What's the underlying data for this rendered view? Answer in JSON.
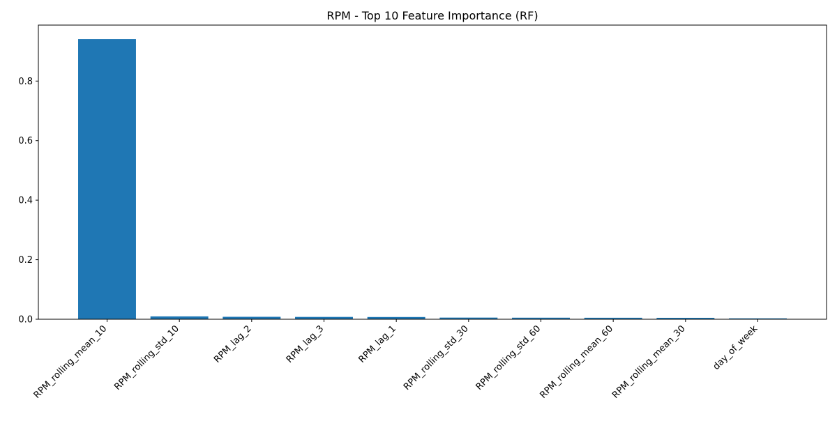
{
  "chart_data": {
    "type": "bar",
    "title": "RPM - Top 10 Feature Importance (RF)",
    "xlabel": "",
    "ylabel": "",
    "categories": [
      "RPM_rolling_mean_10",
      "RPM_rolling_std_10",
      "RPM_lag_2",
      "RPM_lag_3",
      "RPM_lag_1",
      "RPM_rolling_std_30",
      "RPM_rolling_std_60",
      "RPM_rolling_mean_60",
      "RPM_rolling_mean_30",
      "day_of_week"
    ],
    "values": [
      0.941,
      0.0095,
      0.0082,
      0.0078,
      0.0075,
      0.0055,
      0.0052,
      0.005,
      0.0048,
      0.003
    ],
    "ylim": [
      0,
      0.988
    ],
    "yticks": [
      0.0,
      0.2,
      0.4,
      0.6,
      0.8
    ],
    "ytick_labels": [
      "0.0",
      "0.2",
      "0.4",
      "0.6",
      "0.8"
    ],
    "grid": false,
    "bar_color": "#1f77b4"
  }
}
